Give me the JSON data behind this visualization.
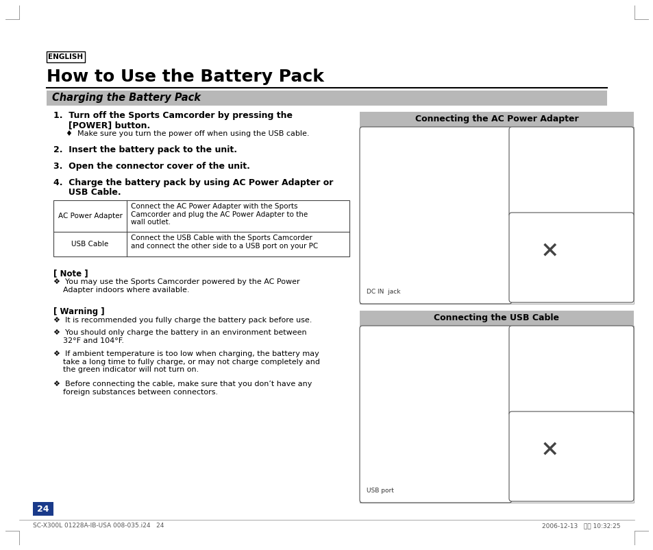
{
  "page_bg": "#ffffff",
  "header_tag_text": "ENGLISH",
  "main_title": "How to Use the Battery Pack",
  "section_title": "Charging the Battery Pack",
  "section_bg": "#b8b8b8",
  "right_panel_bg": "#b8b8b8",
  "table_col1": [
    "AC Power Adapter",
    "USB Cable"
  ],
  "table_col2": [
    "Connect the AC Power Adapter with the Sports\nCamcorder and plug the AC Power Adapter to the\nwall outlet.",
    "Connect the USB Cable with the Sports Camcorder\nand connect the other side to a USB port on your PC"
  ],
  "note_title": "[ Note ]",
  "note_items": [
    "❖  You may use the Sports Camcorder powered by the AC Power\n    Adapter indoors where available."
  ],
  "warning_title": "[ Warning ]",
  "warning_items": [
    "❖  It is recommended you fully charge the battery pack before use.",
    "❖  You should only charge the battery in an environment between\n    32°F and 104°F.",
    "❖  If ambient temperature is too low when charging, the battery may\n    take a long time to fully charge, or may not charge completely and\n    the green indicator will not turn on.",
    "❖  Before connecting the cable, make sure that you don’t have any\n    foreign substances between connectors."
  ],
  "page_number": "24",
  "page_number_bg": "#1a3a8a",
  "footer_left": "SC-X300L 01228A-IB-USA 008-035.i24   24",
  "footer_right": "2006-12-13   오전 10:32:25",
  "right_panel1_title": "Connecting the AC Power Adapter",
  "right_panel2_title": "Connecting the USB Cable",
  "dc_label": "DC IN  jack",
  "usb_label": "USB port"
}
